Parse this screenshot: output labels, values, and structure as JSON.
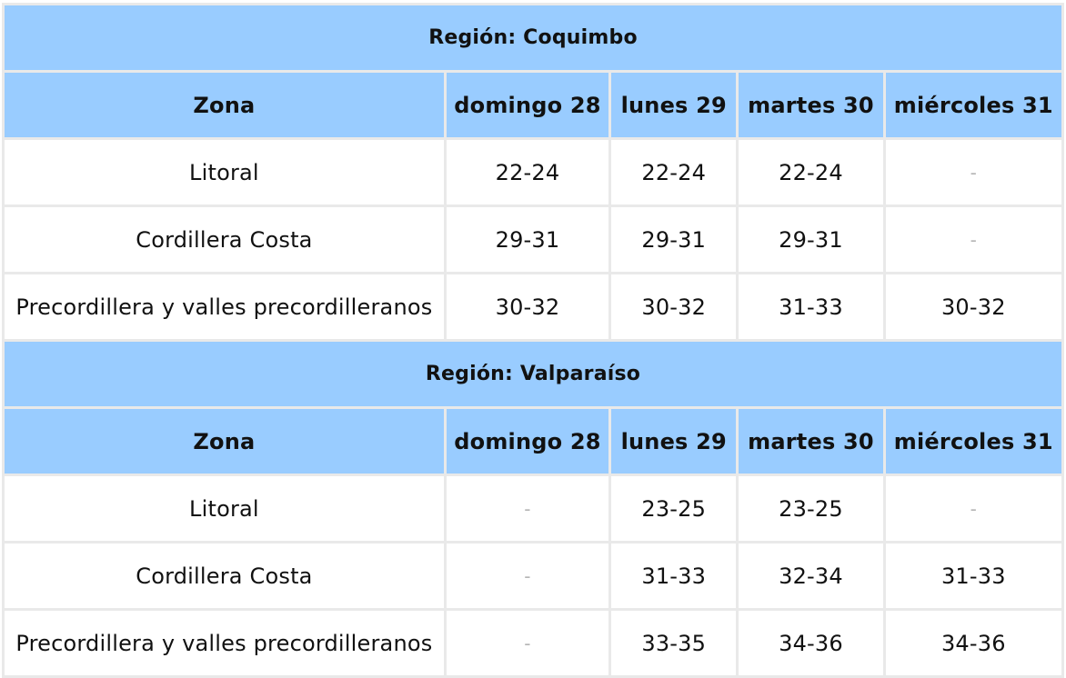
{
  "regions": [
    {
      "title": "Región: Coquimbo",
      "headers": [
        "Zona",
        "domingo 28",
        "lunes 29",
        "martes 30",
        "miércoles 31"
      ],
      "rows": [
        {
          "zona": "Litoral",
          "values": [
            "22-24",
            "22-24",
            "22-24",
            "-"
          ]
        },
        {
          "zona": "Cordillera Costa",
          "values": [
            "29-31",
            "29-31",
            "29-31",
            "-"
          ]
        },
        {
          "zona": "Precordillera y valles precordilleranos",
          "values": [
            "30-32",
            "30-32",
            "31-33",
            "30-32"
          ]
        }
      ]
    },
    {
      "title": "Región: Valparaíso",
      "headers": [
        "Zona",
        "domingo 28",
        "lunes 29",
        "martes 30",
        "miércoles 31"
      ],
      "rows": [
        {
          "zona": "Litoral",
          "values": [
            "-",
            "23-25",
            "23-25",
            "-"
          ]
        },
        {
          "zona": "Cordillera Costa",
          "values": [
            "-",
            "31-33",
            "32-34",
            "31-33"
          ]
        },
        {
          "zona": "Precordillera y valles precordilleranos",
          "values": [
            "-",
            "33-35",
            "34-36",
            "34-36"
          ]
        }
      ]
    }
  ],
  "colors": {
    "header_bg": "#99ccff",
    "border": "#e9e9e9",
    "empty_dash": "#b5b5b5"
  }
}
